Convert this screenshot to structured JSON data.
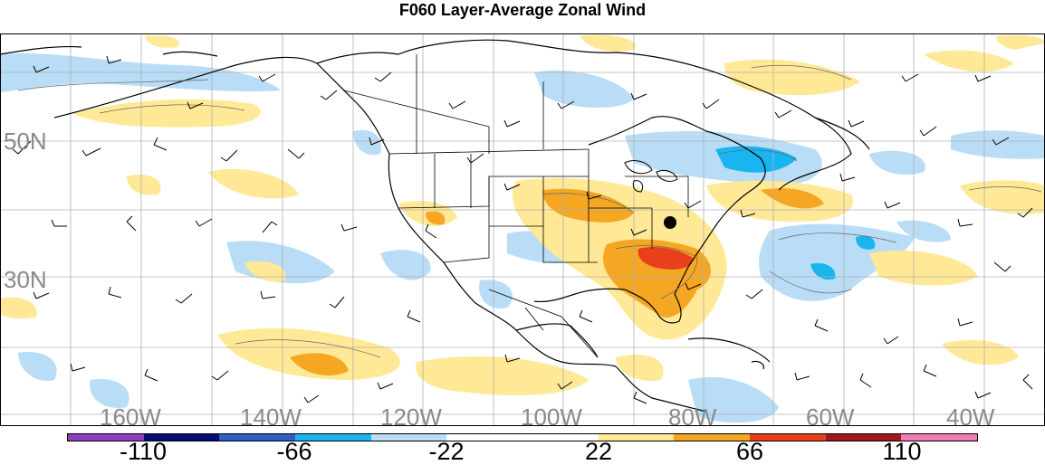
{
  "title": "F060 Layer-Average Zonal Wind",
  "map": {
    "lat_labels": [
      "50N",
      "30N"
    ],
    "lon_labels": [
      "160W",
      "140W",
      "120W",
      "100W",
      "80W",
      "60W",
      "40W"
    ],
    "highlight_marker": "location-dot"
  },
  "colorbar": {
    "colors": [
      "#8c3fc0",
      "#0b0b7a",
      "#2f5fc4",
      "#19b5f0",
      "#b9ddf6",
      "#ffffff",
      "#ffffff",
      "#ffe896",
      "#f5a623",
      "#e8401c",
      "#a0181c",
      "#f07ab2"
    ],
    "labels": [
      "-110",
      "-66",
      "-22",
      "22",
      "66",
      "110"
    ]
  }
}
